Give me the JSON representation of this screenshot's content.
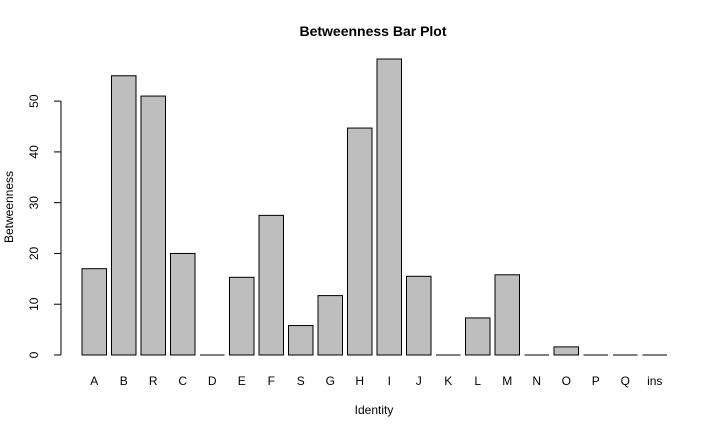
{
  "chart_data": {
    "type": "bar",
    "title": "Betweenness Bar Plot",
    "xlabel": "Identity",
    "ylabel": "Betweenness",
    "categories": [
      "A",
      "B",
      "R",
      "C",
      "D",
      "E",
      "F",
      "S",
      "G",
      "H",
      "I",
      "J",
      "K",
      "L",
      "M",
      "N",
      "O",
      "P",
      "Q",
      "ins"
    ],
    "values": [
      17.0,
      55.0,
      51.0,
      20.0,
      0.0,
      15.3,
      27.5,
      5.8,
      11.7,
      44.7,
      58.3,
      15.5,
      0.0,
      7.3,
      15.8,
      0.0,
      1.6,
      0.0,
      0.0,
      0.0
    ],
    "ylim": [
      0,
      58.3
    ],
    "yticks": [
      0,
      10,
      20,
      30,
      40,
      50
    ],
    "bar_color": "#bebebe",
    "grid": false,
    "legend": "none"
  }
}
